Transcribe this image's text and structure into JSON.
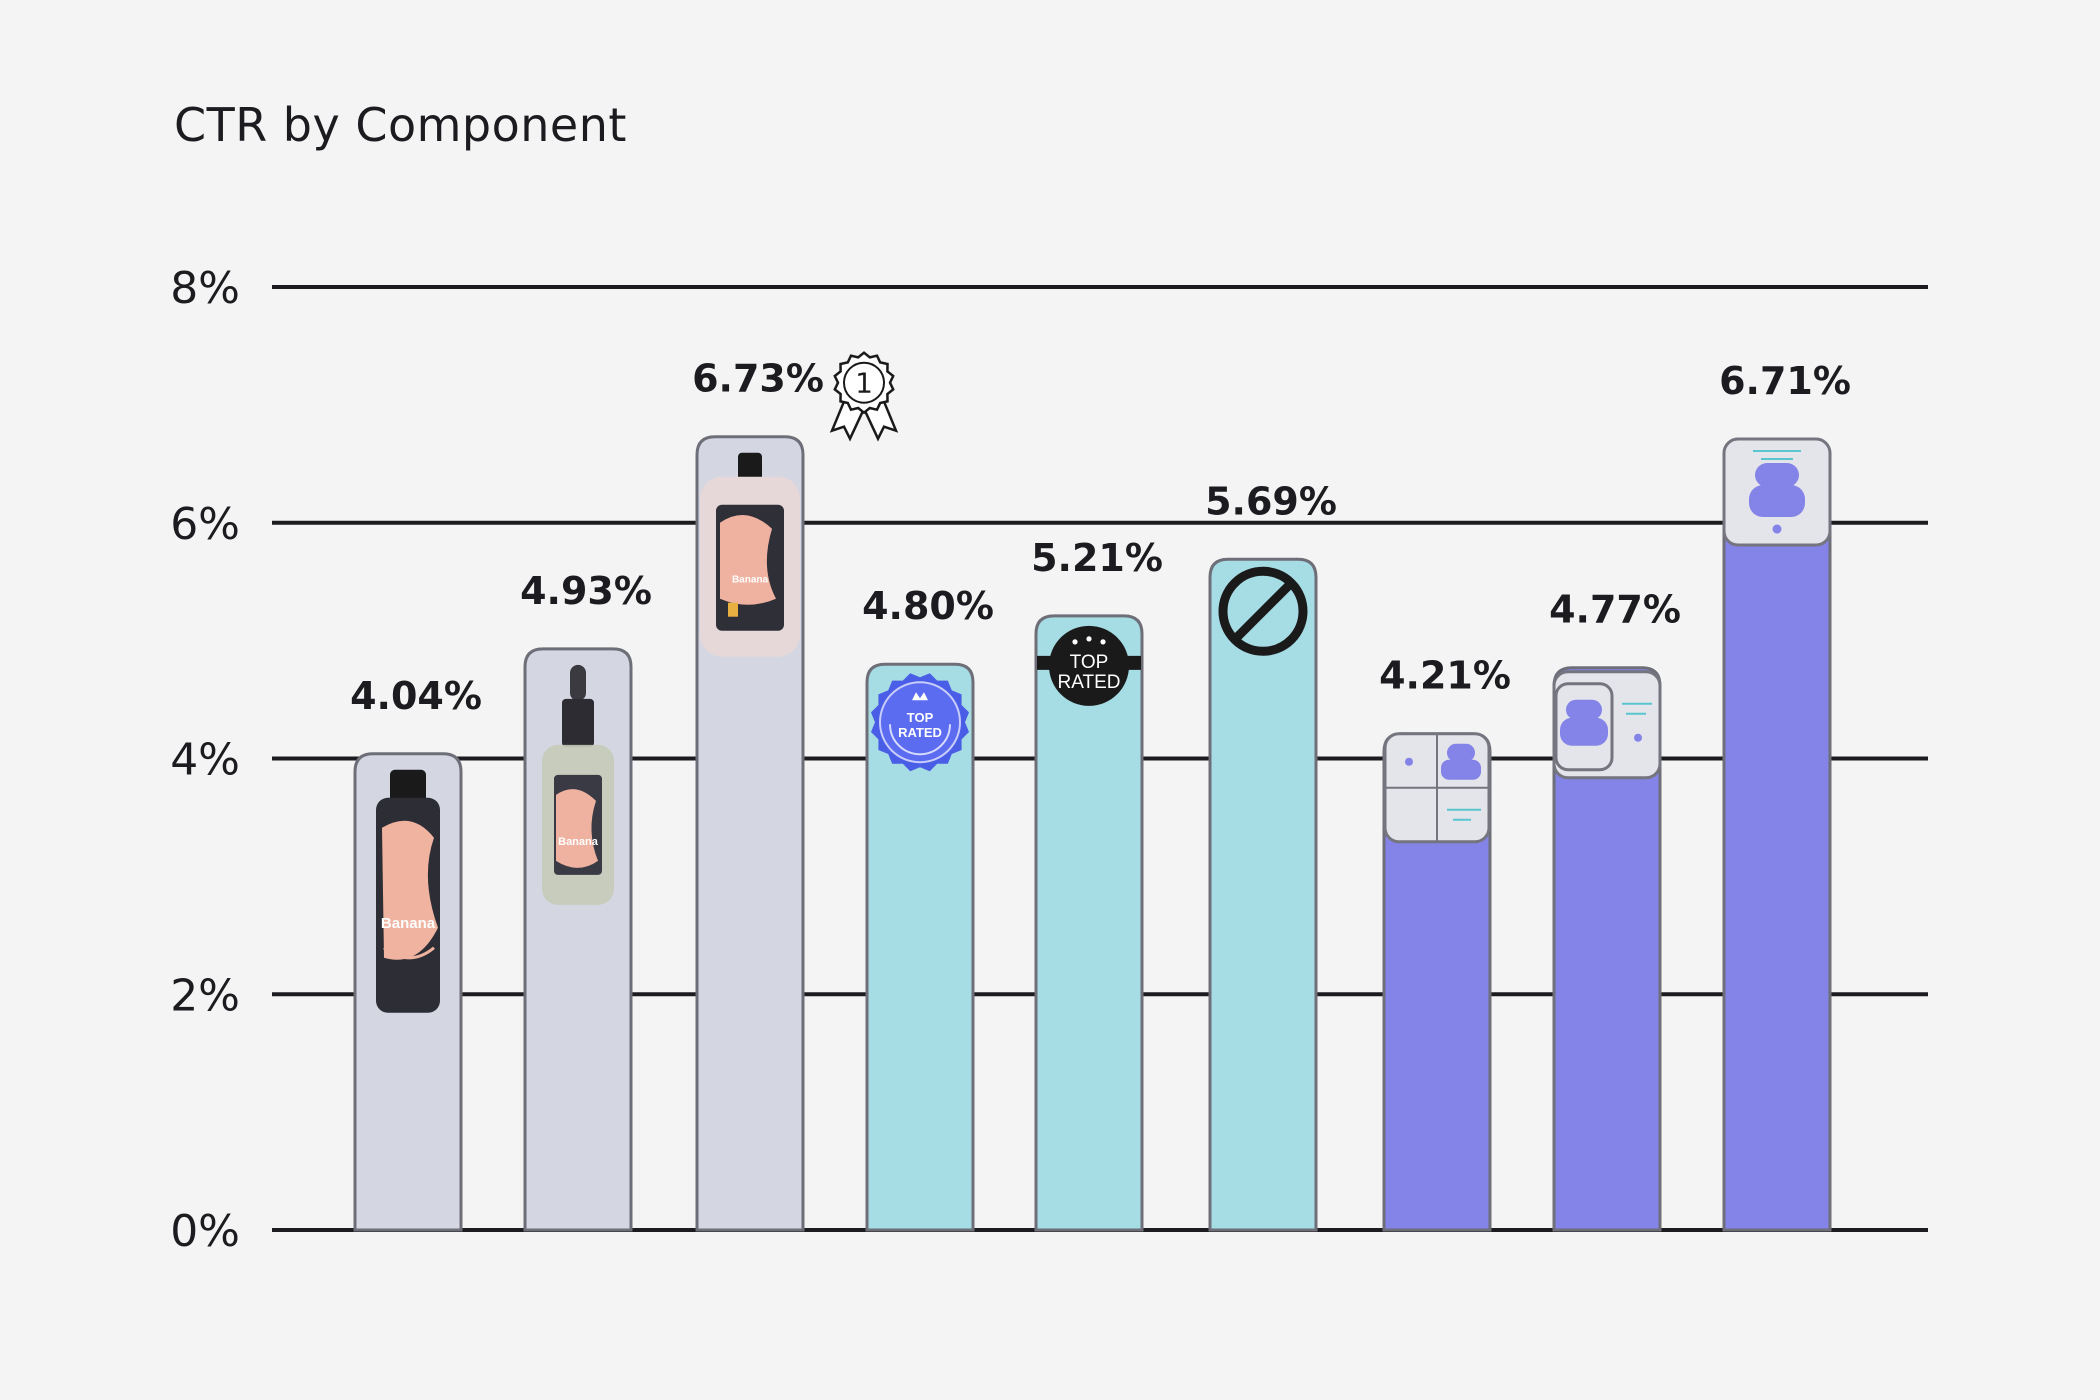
{
  "chart_data": {
    "type": "bar",
    "title": "CTR by Component",
    "xlabel": "",
    "ylabel": "",
    "ylim": [
      0,
      8
    ],
    "yticks": [
      "0%",
      "2%",
      "4%",
      "6%",
      "8%"
    ],
    "grid": true,
    "legend": "none",
    "categories": [
      "",
      "",
      "",
      "",
      "",
      "",
      "",
      "",
      ""
    ],
    "values": [
      4.04,
      4.93,
      6.73,
      4.8,
      5.21,
      5.69,
      4.21,
      4.77,
      6.71
    ],
    "labels": [
      "4.04%",
      "4.93%",
      "6.73%",
      "4.80%",
      "5.21%",
      "5.69%",
      "4.21%",
      "4.77%",
      "6.71%"
    ],
    "colors": [
      "#d4d6e2",
      "#d4d6e2",
      "#d4d6e2",
      "#a6dce4",
      "#a6dce4",
      "#a6dce4",
      "#8483e8",
      "#8483e8",
      "#8483e8"
    ],
    "icons": [
      "black-bottle-icon",
      "dropper-bottle-icon",
      "frosted-bottle-icon",
      "blue-top-rated-seal-icon",
      "black-top-rated-badge-icon",
      "no-badge-icon",
      "grid-layout-card-icon",
      "stacked-card-icon",
      "mobile-card-icon"
    ],
    "badge_texts": {
      "blue_seal": [
        "TOP",
        "RATED"
      ],
      "black_badge": [
        "TOP",
        "RATED"
      ],
      "product_label": "Banana"
    },
    "winner_icon": "first-place-ribbon-icon",
    "winner_text": "1"
  },
  "colors": {
    "background": "#f4f4f4",
    "gridline": "#1c1c20",
    "bar_border": "#6e6e78"
  }
}
